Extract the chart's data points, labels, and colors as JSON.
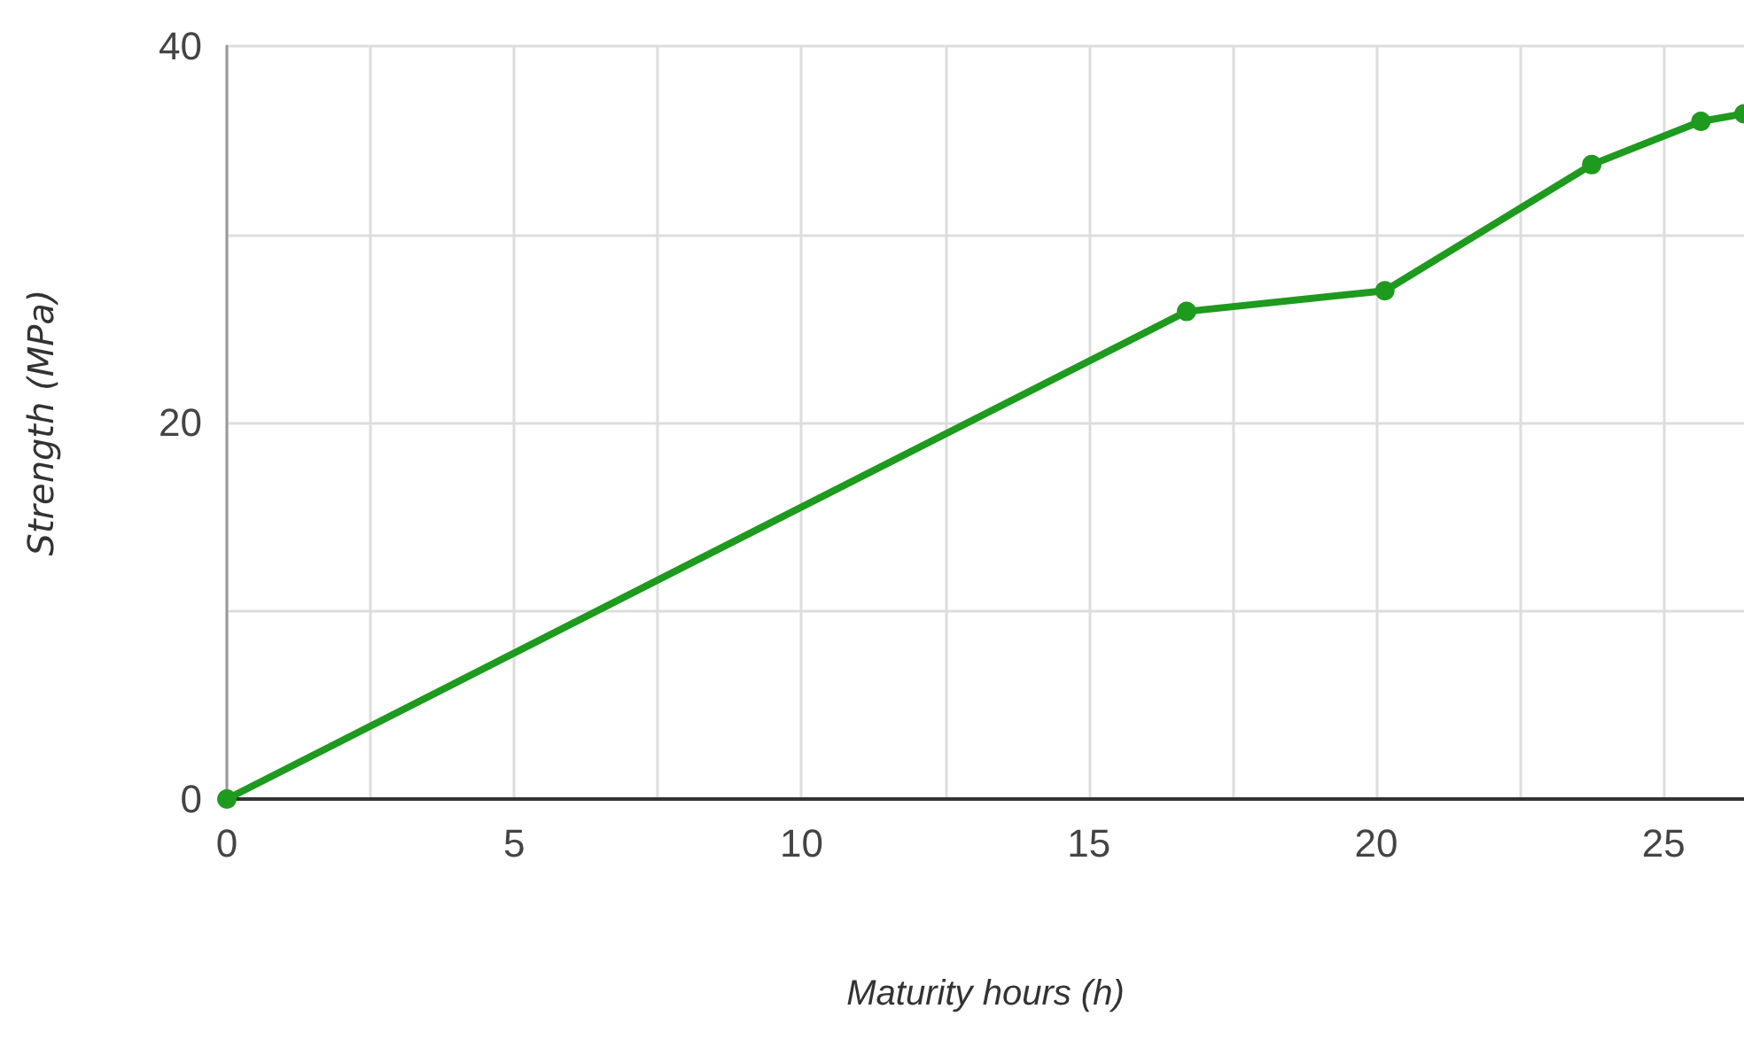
{
  "chart_data": {
    "type": "line",
    "xlabel": "Maturity hours (h)",
    "ylabel": "Strength (MPa)",
    "x": [
      0,
      16.7,
      20.15,
      23.75,
      25.65,
      26.4
    ],
    "series": [
      {
        "color": "#1e9a1e",
        "values": [
          0,
          25.9,
          27.0,
          33.7,
          36.0,
          36.4
        ]
      }
    ],
    "xlim": [
      0,
      26.4
    ],
    "ylim": [
      0,
      40
    ],
    "xticks": [
      0,
      {
        "value": 2.5,
        "label": null
      },
      5,
      {
        "value": 7.5,
        "label": null
      },
      10,
      {
        "value": 12.5,
        "label": null
      },
      15,
      {
        "value": 17.5,
        "label": null
      },
      20,
      {
        "value": 22.5,
        "label": null
      },
      25
    ],
    "yticks": [
      0,
      {
        "value": 10,
        "label": null
      },
      20,
      {
        "value": 30,
        "label": null
      },
      40
    ],
    "grid": true,
    "marker": "circle",
    "line_style": "solid"
  }
}
